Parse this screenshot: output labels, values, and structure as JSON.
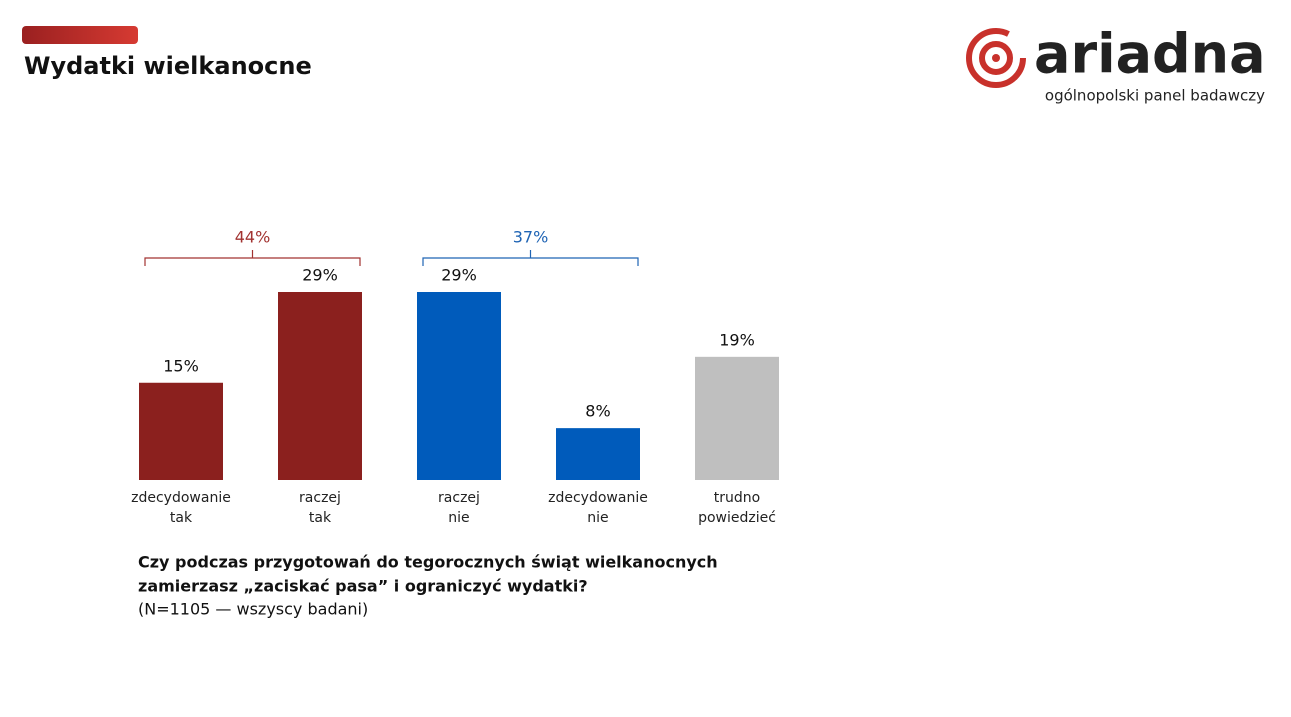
{
  "header": {
    "title": "Wydatki wielkanocne",
    "logo": "ariadna",
    "tagline": "ogólnopolski panel badawczy"
  },
  "chart_data": {
    "type": "bar",
    "categories": [
      [
        "zdecydowanie",
        "tak"
      ],
      [
        "raczej",
        "tak"
      ],
      [
        "raczej",
        "nie"
      ],
      [
        "zdecydowanie",
        "nie"
      ],
      [
        "trudno",
        "powiedzieć"
      ]
    ],
    "values": [
      15,
      29,
      29,
      8,
      19
    ],
    "value_labels": [
      "15%",
      "29%",
      "29%",
      "8%",
      "19%"
    ],
    "colors": [
      "#8b201e",
      "#8b201e",
      "#005bbb",
      "#005bbb",
      "#bfbfbf"
    ],
    "groups": [
      {
        "value": 44,
        "label": "44%",
        "color": "#a23331"
      },
      {
        "value": 37,
        "label": "37%",
        "color": "#1f64b4"
      }
    ],
    "question": [
      "Czy podczas przygotowań do tegorocznych świąt wielkanocnych",
      "zamierzasz „zaciskać pasa” i ograniczyć wydatki?"
    ],
    "note": "(N=1105 — wszyscy badani)"
  }
}
